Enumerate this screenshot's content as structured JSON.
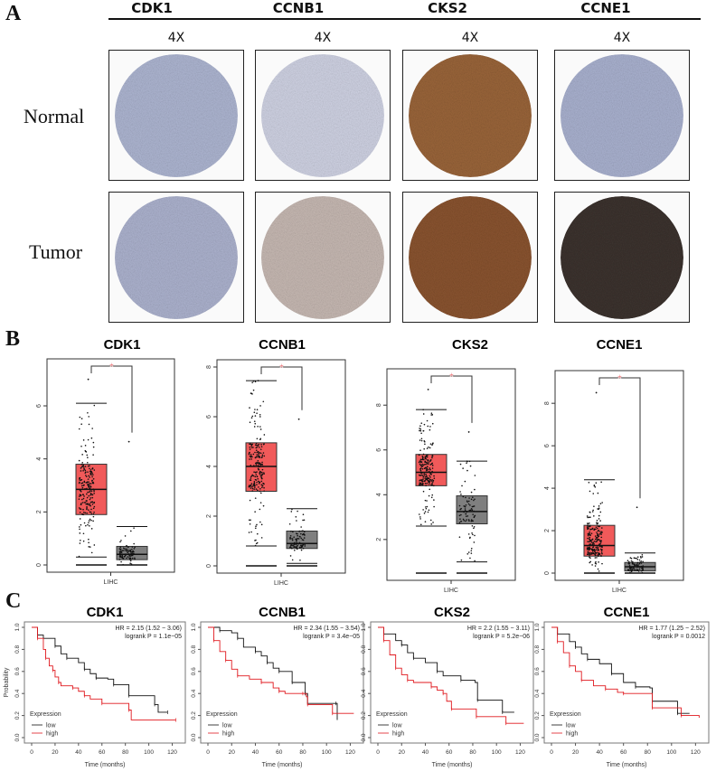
{
  "panel_a": {
    "letter": "A",
    "genes": [
      "CDK1",
      "CCNB1",
      "CKS2",
      "CCNE1"
    ],
    "magnification": "4X",
    "rows": [
      "Normal",
      "Tumor"
    ],
    "stain_colors": {
      "normal": [
        "#aeb6d2",
        "#d0d3e4",
        "#9a653a",
        "#aab2d0"
      ],
      "tumor": [
        "#adb3cf",
        "#c7b9b3",
        "#8a5430",
        "#3c332f"
      ]
    }
  },
  "panel_b": {
    "letter": "B",
    "significance_mark": "*",
    "colors": {
      "tumor": "#f15a5a",
      "normal": "#7f7f7f"
    },
    "chart_data": [
      {
        "type": "box",
        "title": "CDK1",
        "categories": [
          "LIHC"
        ],
        "ylim": [
          0,
          7.5
        ],
        "yticks": [
          0,
          2,
          4,
          6
        ],
        "series": [
          {
            "group": "tumor",
            "whisker_low": 0.3,
            "q1": 1.9,
            "median": 2.85,
            "q3": 3.8,
            "whisker_high": 6.1,
            "max": 7.0
          },
          {
            "group": "normal",
            "whisker_low": 0.0,
            "q1": 0.2,
            "median": 0.4,
            "q3": 0.7,
            "whisker_high": 1.45,
            "max": 4.65
          }
        ]
      },
      {
        "type": "box",
        "title": "CCNB1",
        "categories": [
          "LIHC"
        ],
        "ylim": [
          0,
          8
        ],
        "yticks": [
          0,
          2,
          4,
          6,
          8
        ],
        "series": [
          {
            "group": "tumor",
            "whisker_low": 0.8,
            "q1": 3.0,
            "median": 4.0,
            "q3": 4.95,
            "whisker_high": 7.45,
            "max": 7.45
          },
          {
            "group": "normal",
            "whisker_low": 0.1,
            "q1": 0.7,
            "median": 0.9,
            "q3": 1.4,
            "whisker_high": 2.3,
            "max": 5.9
          }
        ]
      },
      {
        "type": "box",
        "title": "CKS2",
        "categories": [
          "LIHC"
        ],
        "ylim": [
          0.5,
          9.3
        ],
        "yticks": [
          2,
          4,
          6,
          8
        ],
        "series": [
          {
            "group": "tumor",
            "whisker_low": 2.6,
            "q1": 4.4,
            "median": 5.0,
            "q3": 5.8,
            "whisker_high": 7.8,
            "max": 8.7
          },
          {
            "group": "normal",
            "whisker_low": 1.0,
            "q1": 2.7,
            "median": 3.25,
            "q3": 3.95,
            "whisker_high": 5.5,
            "max": 6.8
          }
        ]
      },
      {
        "type": "box",
        "title": "CCNE1",
        "categories": [
          "LIHC"
        ],
        "ylim": [
          0,
          9.2
        ],
        "yticks": [
          0,
          2,
          4,
          6,
          8
        ],
        "series": [
          {
            "group": "tumor",
            "whisker_low": 0.0,
            "q1": 0.8,
            "median": 1.3,
            "q3": 2.25,
            "whisker_high": 4.4,
            "max": 8.5
          },
          {
            "group": "normal",
            "whisker_low": 0.0,
            "q1": 0.1,
            "median": 0.3,
            "q3": 0.5,
            "whisker_high": 0.95,
            "max": 3.1
          }
        ]
      }
    ]
  },
  "panel_c": {
    "letter": "C",
    "ylabel": "Probability",
    "xlabel": "Time (months)",
    "legend_title": "Expression",
    "legend": [
      "low",
      "high"
    ],
    "colors": {
      "low": "#111111",
      "high": "#e0191f"
    },
    "chart_data": [
      {
        "type": "line",
        "title": "CDK1",
        "hr": "HR = 2.15 (1.52 − 3.06)",
        "p": "logrank P = 1.1e−05",
        "xlim": [
          0,
          125
        ],
        "ylim": [
          0,
          1
        ],
        "xticks": [
          0,
          20,
          40,
          60,
          80,
          100,
          120
        ],
        "yticks": [
          0.0,
          0.2,
          0.4,
          0.6,
          0.8,
          1.0
        ],
        "series": [
          {
            "name": "low",
            "points": [
              [
                0,
                1
              ],
              [
                5,
                0.93
              ],
              [
                10,
                0.9
              ],
              [
                20,
                0.83
              ],
              [
                25,
                0.76
              ],
              [
                30,
                0.72
              ],
              [
                40,
                0.68
              ],
              [
                45,
                0.62
              ],
              [
                50,
                0.58
              ],
              [
                55,
                0.54
              ],
              [
                65,
                0.53
              ],
              [
                70,
                0.48
              ],
              [
                82,
                0.48
              ],
              [
                83,
                0.38
              ],
              [
                104,
                0.38
              ],
              [
                105,
                0.3
              ],
              [
                108,
                0.23
              ],
              [
                116,
                0.23
              ]
            ]
          },
          {
            "name": "high",
            "points": [
              [
                0,
                1
              ],
              [
                5,
                0.9
              ],
              [
                10,
                0.8
              ],
              [
                12,
                0.72
              ],
              [
                15,
                0.65
              ],
              [
                18,
                0.61
              ],
              [
                20,
                0.55
              ],
              [
                23,
                0.5
              ],
              [
                25,
                0.47
              ],
              [
                35,
                0.45
              ],
              [
                40,
                0.42
              ],
              [
                45,
                0.38
              ],
              [
                50,
                0.35
              ],
              [
                60,
                0.31
              ],
              [
                80,
                0.31
              ],
              [
                83,
                0.25
              ],
              [
                85,
                0.16
              ],
              [
                123,
                0.16
              ]
            ]
          }
        ]
      },
      {
        "type": "line",
        "title": "CCNB1",
        "hr": "HR = 2.34 (1.55 − 3.54)",
        "p": "logrank P = 3.4e−05",
        "xlim": [
          0,
          125
        ],
        "ylim": [
          0,
          1
        ],
        "xticks": [
          0,
          20,
          40,
          60,
          80,
          100,
          120
        ],
        "yticks": [
          0.0,
          0.2,
          0.4,
          0.6,
          0.8,
          1.0
        ],
        "series": [
          {
            "name": "low",
            "points": [
              [
                0,
                1
              ],
              [
                10,
                0.97
              ],
              [
                20,
                0.95
              ],
              [
                25,
                0.9
              ],
              [
                30,
                0.82
              ],
              [
                40,
                0.78
              ],
              [
                45,
                0.74
              ],
              [
                50,
                0.68
              ],
              [
                55,
                0.63
              ],
              [
                60,
                0.6
              ],
              [
                70,
                0.6
              ],
              [
                71,
                0.5
              ],
              [
                81,
                0.5
              ],
              [
                82,
                0.4
              ],
              [
                84,
                0.31
              ],
              [
                108,
                0.31
              ],
              [
                109,
                0.16
              ]
            ]
          },
          {
            "name": "high",
            "points": [
              [
                0,
                1
              ],
              [
                5,
                0.88
              ],
              [
                10,
                0.78
              ],
              [
                15,
                0.7
              ],
              [
                20,
                0.62
              ],
              [
                25,
                0.56
              ],
              [
                35,
                0.53
              ],
              [
                45,
                0.5
              ],
              [
                55,
                0.45
              ],
              [
                60,
                0.42
              ],
              [
                65,
                0.4
              ],
              [
                80,
                0.4
              ],
              [
                83,
                0.37
              ],
              [
                84,
                0.3
              ],
              [
                104,
                0.3
              ],
              [
                105,
                0.22
              ],
              [
                123,
                0.22
              ]
            ]
          }
        ]
      },
      {
        "type": "line",
        "title": "CKS2",
        "hr": "HR = 2.2 (1.55 − 3.11)",
        "p": "logrank P = 5.2e−06",
        "xlim": [
          0,
          125
        ],
        "ylim": [
          0,
          1
        ],
        "xticks": [
          0,
          20,
          40,
          60,
          80,
          100,
          120
        ],
        "yticks": [
          0.0,
          0.2,
          0.4,
          0.6,
          0.8,
          1.0
        ],
        "series": [
          {
            "name": "low",
            "points": [
              [
                0,
                1
              ],
              [
                5,
                0.94
              ],
              [
                15,
                0.88
              ],
              [
                20,
                0.84
              ],
              [
                25,
                0.77
              ],
              [
                30,
                0.72
              ],
              [
                40,
                0.68
              ],
              [
                50,
                0.6
              ],
              [
                55,
                0.56
              ],
              [
                70,
                0.52
              ],
              [
                82,
                0.5
              ],
              [
                84,
                0.34
              ],
              [
                104,
                0.34
              ],
              [
                105,
                0.23
              ],
              [
                115,
                0.23
              ]
            ]
          },
          {
            "name": "high",
            "points": [
              [
                0,
                1
              ],
              [
                5,
                0.88
              ],
              [
                10,
                0.75
              ],
              [
                15,
                0.63
              ],
              [
                20,
                0.57
              ],
              [
                25,
                0.52
              ],
              [
                30,
                0.5
              ],
              [
                45,
                0.46
              ],
              [
                50,
                0.43
              ],
              [
                55,
                0.4
              ],
              [
                58,
                0.33
              ],
              [
                62,
                0.26
              ],
              [
                82,
                0.26
              ],
              [
                83,
                0.19
              ],
              [
                107,
                0.19
              ],
              [
                108,
                0.13
              ],
              [
                123,
                0.13
              ]
            ]
          }
        ]
      },
      {
        "type": "line",
        "title": "CCNE1",
        "hr": "HR = 1.77 (1.25 − 2.52)",
        "p": "logrank P = 0.0012",
        "xlim": [
          0,
          125
        ],
        "ylim": [
          0,
          1
        ],
        "xticks": [
          0,
          20,
          40,
          60,
          80,
          100,
          120
        ],
        "yticks": [
          0.0,
          0.2,
          0.4,
          0.6,
          0.8,
          1.0
        ],
        "series": [
          {
            "name": "low",
            "points": [
              [
                0,
                1
              ],
              [
                5,
                0.94
              ],
              [
                15,
                0.87
              ],
              [
                20,
                0.82
              ],
              [
                25,
                0.76
              ],
              [
                30,
                0.71
              ],
              [
                40,
                0.67
              ],
              [
                50,
                0.58
              ],
              [
                60,
                0.5
              ],
              [
                70,
                0.46
              ],
              [
                82,
                0.45
              ],
              [
                84,
                0.33
              ],
              [
                104,
                0.33
              ],
              [
                105,
                0.22
              ],
              [
                115,
                0.22
              ]
            ]
          },
          {
            "name": "high",
            "points": [
              [
                0,
                1
              ],
              [
                5,
                0.87
              ],
              [
                10,
                0.77
              ],
              [
                15,
                0.65
              ],
              [
                20,
                0.6
              ],
              [
                25,
                0.52
              ],
              [
                35,
                0.47
              ],
              [
                45,
                0.44
              ],
              [
                55,
                0.41
              ],
              [
                60,
                0.4
              ],
              [
                82,
                0.4
              ],
              [
                84,
                0.27
              ],
              [
                104,
                0.27
              ],
              [
                108,
                0.2
              ],
              [
                123,
                0.18
              ]
            ]
          }
        ]
      }
    ]
  }
}
